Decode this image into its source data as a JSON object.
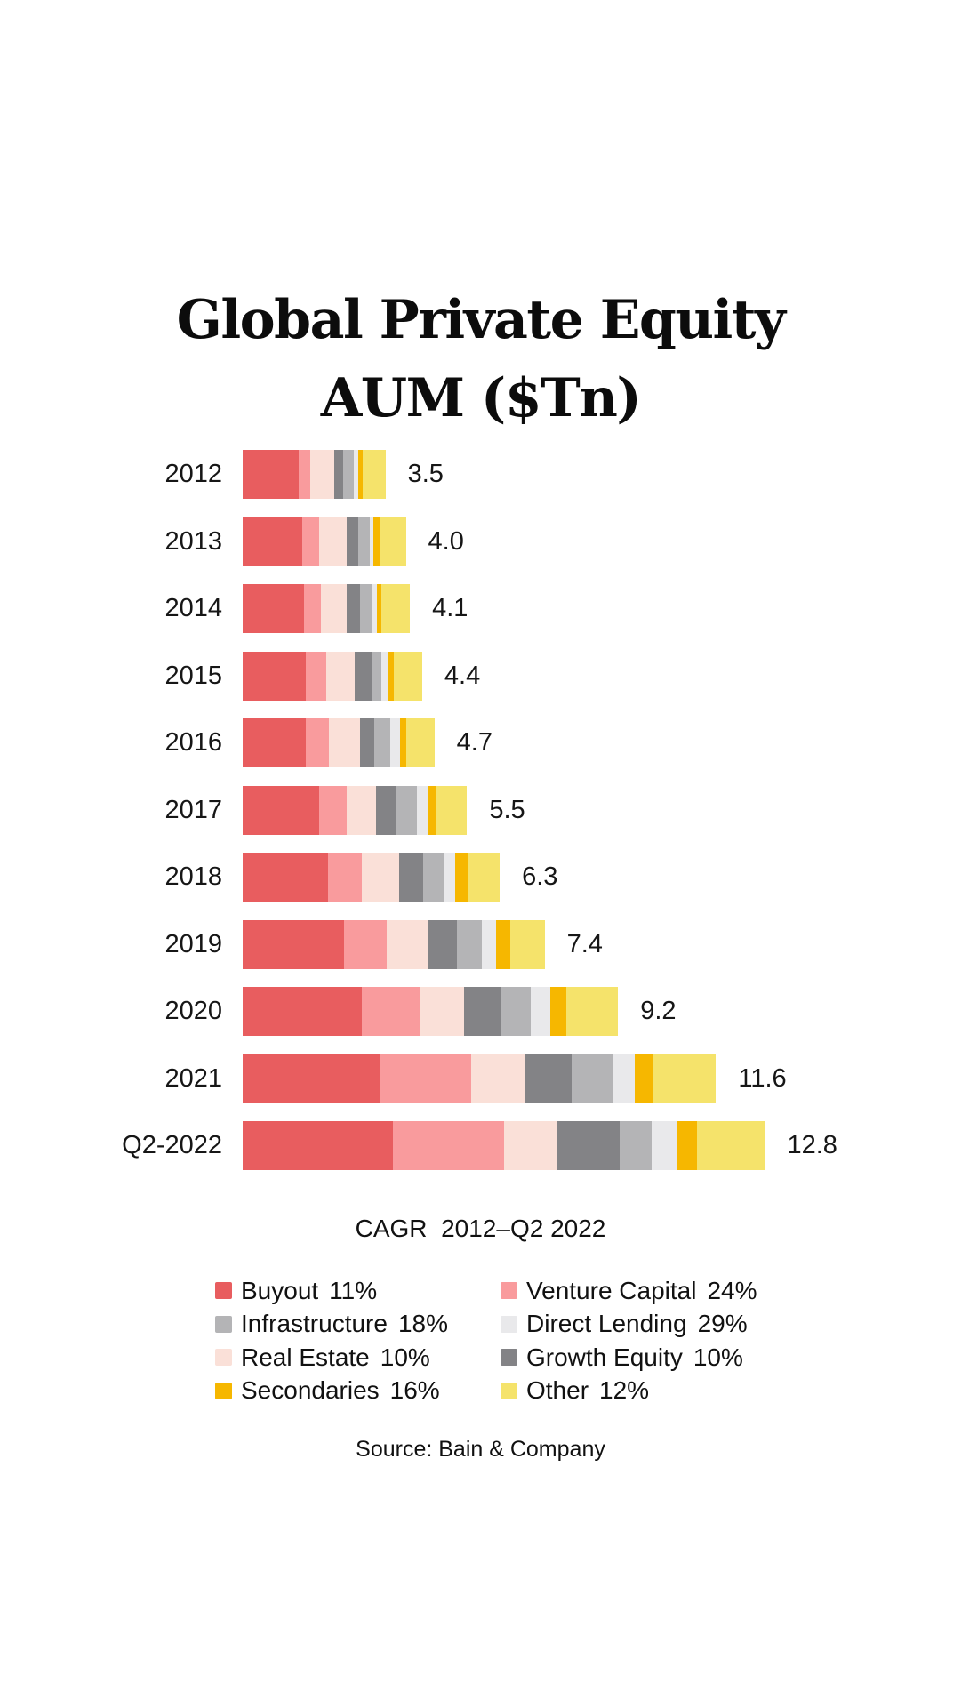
{
  "page": {
    "background": "#FFFFFF"
  },
  "title": {
    "line1": "Global Private Equity",
    "line2": "AUM ($Tn)"
  },
  "chart_data": {
    "type": "bar",
    "orientation": "horizontal",
    "stacked": true,
    "title": "Global Private Equity AUM ($Tn)",
    "unit": "$Tn",
    "xlim": [
      0,
      12.8
    ],
    "grid": false,
    "legend_position": "bottom",
    "categories": [
      "2012",
      "2013",
      "2014",
      "2015",
      "2016",
      "2017",
      "2018",
      "2019",
      "2020",
      "2021",
      "Q2-2022"
    ],
    "totals": [
      3.5,
      4.0,
      4.1,
      4.4,
      4.7,
      5.5,
      6.3,
      7.4,
      9.2,
      11.6,
      12.8
    ],
    "total_labels": [
      "3.5",
      "4.0",
      "4.1",
      "4.4",
      "4.7",
      "5.5",
      "6.3",
      "7.4",
      "9.2",
      "11.6",
      "12.8"
    ],
    "series": [
      {
        "name": "Buyout",
        "cagr": "11%",
        "color": "#E85D5F",
        "values": [
          1.38,
          1.46,
          1.51,
          1.54,
          1.54,
          1.87,
          2.1,
          2.48,
          2.92,
          3.35,
          3.69
        ]
      },
      {
        "name": "Venture Capital",
        "cagr": "24%",
        "color": "#F99B9D",
        "values": [
          0.28,
          0.42,
          0.41,
          0.51,
          0.57,
          0.69,
          0.81,
          1.04,
          1.44,
          2.25,
          2.71
        ]
      },
      {
        "name": "Real Estate",
        "cagr": "10%",
        "color": "#FAE0D8",
        "values": [
          0.59,
          0.66,
          0.63,
          0.7,
          0.77,
          0.71,
          0.92,
          1.02,
          1.07,
          1.3,
          1.29
        ]
      },
      {
        "name": "Growth Equity",
        "cagr": "10%",
        "color": "#838386",
        "values": [
          0.22,
          0.29,
          0.32,
          0.42,
          0.35,
          0.51,
          0.59,
          0.7,
          0.89,
          1.17,
          1.55
        ]
      },
      {
        "name": "Infrastructure",
        "cagr": "18%",
        "color": "#B4B4B6",
        "values": [
          0.26,
          0.29,
          0.28,
          0.22,
          0.38,
          0.49,
          0.52,
          0.63,
          0.74,
          1.0,
          0.79
        ]
      },
      {
        "name": "Direct Lending",
        "cagr": "29%",
        "color": "#E9E9EB",
        "values": [
          0.11,
          0.09,
          0.13,
          0.18,
          0.24,
          0.29,
          0.26,
          0.33,
          0.48,
          0.54,
          0.63
        ]
      },
      {
        "name": "Secondaries",
        "cagr": "16%",
        "color": "#F6B700",
        "values": [
          0.11,
          0.15,
          0.13,
          0.13,
          0.15,
          0.2,
          0.31,
          0.35,
          0.39,
          0.45,
          0.48
        ]
      },
      {
        "name": "Other",
        "cagr": "12%",
        "color": "#F5E36B",
        "values": [
          0.55,
          0.64,
          0.69,
          0.7,
          0.7,
          0.74,
          0.79,
          0.85,
          1.27,
          1.54,
          1.66
        ]
      }
    ]
  },
  "cagr_heading": "CAGR  2012–Q2 2022",
  "legend": {
    "items": [
      {
        "label": "Buyout",
        "pct": "11%",
        "color": "#E85D5F"
      },
      {
        "label": "Venture Capital",
        "pct": "24%",
        "color": "#F99B9D"
      },
      {
        "label": "Infrastructure",
        "pct": "18%",
        "color": "#B4B4B6"
      },
      {
        "label": "Direct Lending",
        "pct": "29%",
        "color": "#E9E9EB"
      },
      {
        "label": "Real Estate",
        "pct": "10%",
        "color": "#FAE0D8"
      },
      {
        "label": "Growth Equity",
        "pct": "10%",
        "color": "#838386"
      },
      {
        "label": "Secondaries",
        "pct": "16%",
        "color": "#F6B700"
      },
      {
        "label": "Other",
        "pct": "12%",
        "color": "#F5E36B"
      }
    ]
  },
  "source": "Source: Bain & Company"
}
